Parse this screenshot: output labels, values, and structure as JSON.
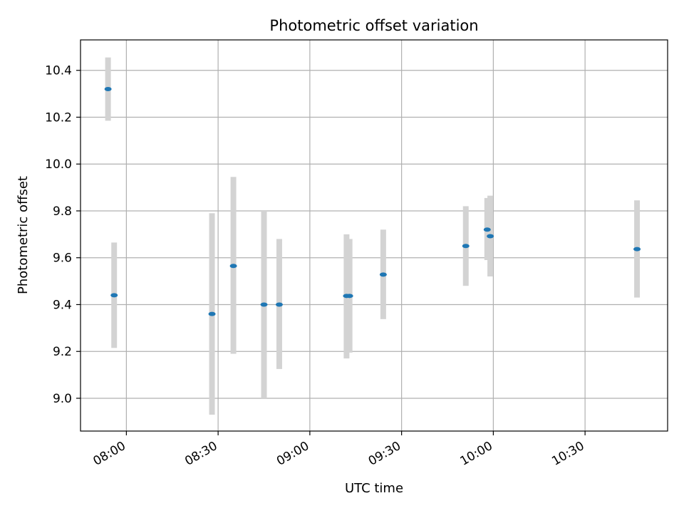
{
  "chart_data": {
    "type": "scatter",
    "title": "Photometric offset variation",
    "xlabel": "UTC time",
    "ylabel": "Photometric offset",
    "grid": true,
    "x_ticks": [
      "08:00",
      "08:30",
      "09:00",
      "09:30",
      "10:00",
      "10:30"
    ],
    "x_tick_minutes": [
      480,
      510,
      540,
      570,
      600,
      630
    ],
    "xlim_minutes": [
      465,
      657
    ],
    "y_ticks": [
      "9.0",
      "9.2",
      "9.4",
      "9.6",
      "9.8",
      "10.0",
      "10.2",
      "10.4"
    ],
    "y_tick_values": [
      9.0,
      9.2,
      9.4,
      9.6,
      9.8,
      10.0,
      10.2,
      10.4
    ],
    "ylim": [
      8.86,
      10.53
    ],
    "colors": {
      "marker": "#1f77b4",
      "errorbar": "#d3d3d3",
      "grid": "#b0b0b0"
    },
    "points": [
      {
        "time": "07:54",
        "y": 10.32,
        "err_low": 10.185,
        "err_high": 10.455
      },
      {
        "time": "07:56",
        "y": 9.44,
        "err_low": 9.215,
        "err_high": 9.665
      },
      {
        "time": "08:28",
        "y": 9.36,
        "err_low": 8.93,
        "err_high": 9.79
      },
      {
        "time": "08:35",
        "y": 9.565,
        "err_low": 9.19,
        "err_high": 9.945
      },
      {
        "time": "08:45",
        "y": 9.4,
        "err_low": 9.0,
        "err_high": 9.8
      },
      {
        "time": "08:50",
        "y": 9.4,
        "err_low": 9.125,
        "err_high": 9.68
      },
      {
        "time": "09:12",
        "y": 9.437,
        "err_low": 9.17,
        "err_high": 9.7
      },
      {
        "time": "09:13",
        "y": 9.437,
        "err_low": 9.195,
        "err_high": 9.68
      },
      {
        "time": "09:24",
        "y": 9.528,
        "err_low": 9.338,
        "err_high": 9.72
      },
      {
        "time": "09:51",
        "y": 9.65,
        "err_low": 9.48,
        "err_high": 9.82
      },
      {
        "time": "09:58",
        "y": 9.72,
        "err_low": 9.59,
        "err_high": 9.855
      },
      {
        "time": "09:59",
        "y": 9.692,
        "err_low": 9.52,
        "err_high": 9.865
      },
      {
        "time": "10:47",
        "y": 9.637,
        "err_low": 9.43,
        "err_high": 9.845
      }
    ]
  }
}
